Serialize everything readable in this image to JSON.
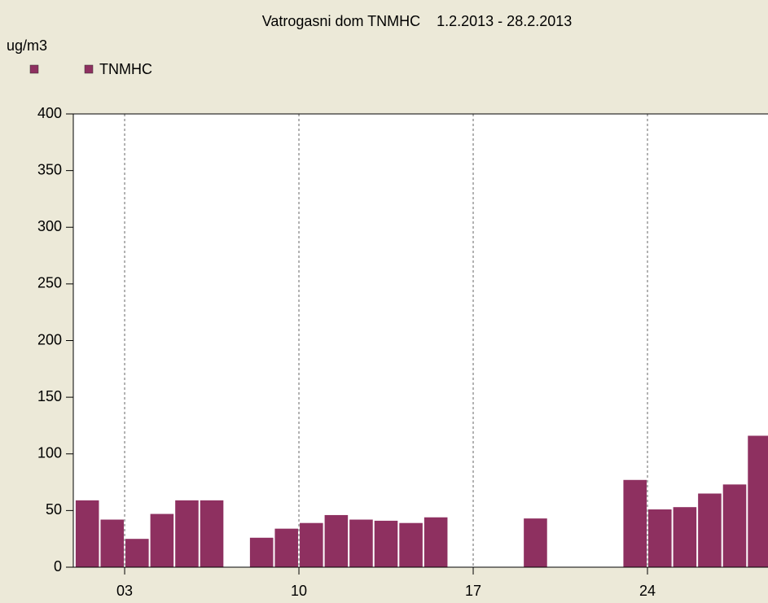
{
  "chart_data": {
    "type": "bar",
    "title": "Vatrogasni dom TNMHC    1.2.2013 - 28.2.2013",
    "y_label": "ug/m3",
    "x": [
      1,
      2,
      3,
      4,
      5,
      6,
      7,
      8,
      9,
      10,
      11,
      12,
      13,
      14,
      15,
      16,
      17,
      18,
      19,
      20,
      21,
      22,
      23,
      24,
      25,
      26,
      27,
      28
    ],
    "series": [
      {
        "name": "TNMHC",
        "color": "#8e3060",
        "values": [
          59,
          42,
          25,
          47,
          59,
          59,
          null,
          26,
          34,
          39,
          46,
          42,
          41,
          39,
          44,
          null,
          null,
          null,
          43,
          null,
          null,
          null,
          77,
          51,
          53,
          65,
          73,
          116
        ]
      }
    ],
    "xlim": [
      1,
      29
    ],
    "xticks": [
      {
        "value": 3,
        "label": "03"
      },
      {
        "value": 10,
        "label": "10"
      },
      {
        "value": 17,
        "label": "17"
      },
      {
        "value": 24,
        "label": "24"
      }
    ],
    "ylim": [
      0,
      400
    ],
    "yticks": [
      0,
      50,
      100,
      150,
      200,
      250,
      300,
      350,
      400
    ],
    "grid": true
  }
}
